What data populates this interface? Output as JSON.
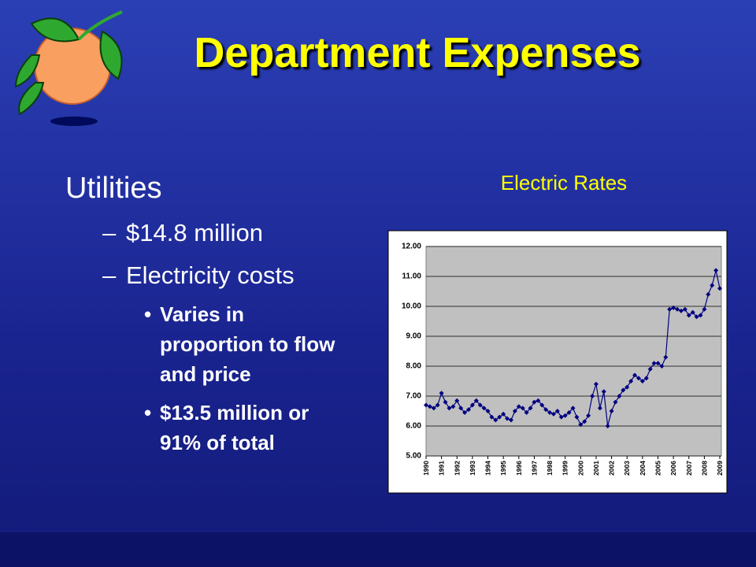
{
  "title": "Department Expenses",
  "heading": "Utilities",
  "dash": "–",
  "dot": "•",
  "items": [
    "$14.8 million",
    "Electricity costs"
  ],
  "subitems": [
    "Varies in proportion to flow and price",
    "$13.5 million or 91% of total"
  ],
  "chart_data": {
    "type": "line",
    "title": "Electric Rates",
    "x": [
      1990,
      1990.25,
      1990.5,
      1990.75,
      1991,
      1991.25,
      1991.5,
      1991.75,
      1992,
      1992.25,
      1992.5,
      1992.75,
      1993,
      1993.25,
      1993.5,
      1993.75,
      1994,
      1994.25,
      1994.5,
      1994.75,
      1995,
      1995.25,
      1995.5,
      1995.75,
      1996,
      1996.25,
      1996.5,
      1996.75,
      1997,
      1997.25,
      1997.5,
      1997.75,
      1998,
      1998.25,
      1998.5,
      1998.75,
      1999,
      1999.25,
      1999.5,
      1999.75,
      2000,
      2000.25,
      2000.5,
      2000.75,
      2001,
      2001.25,
      2001.5,
      2001.75,
      2002,
      2002.25,
      2002.5,
      2002.75,
      2003,
      2003.25,
      2003.5,
      2003.75,
      2004,
      2004.25,
      2004.5,
      2004.75,
      2005,
      2005.25,
      2005.5,
      2005.75,
      2006,
      2006.25,
      2006.5,
      2006.75,
      2007,
      2007.25,
      2007.5,
      2007.75,
      2008,
      2008.25,
      2008.5,
      2008.75,
      2009
    ],
    "series": [
      {
        "color": "#000080",
        "values": [
          6.7,
          6.65,
          6.6,
          6.7,
          7.1,
          6.8,
          6.6,
          6.65,
          6.85,
          6.6,
          6.45,
          6.55,
          6.7,
          6.85,
          6.7,
          6.6,
          6.5,
          6.3,
          6.2,
          6.3,
          6.4,
          6.25,
          6.2,
          6.5,
          6.65,
          6.6,
          6.45,
          6.6,
          6.8,
          6.85,
          6.7,
          6.55,
          6.45,
          6.4,
          6.5,
          6.3,
          6.35,
          6.45,
          6.6,
          6.3,
          6.05,
          6.15,
          6.35,
          7.0,
          7.4,
          6.6,
          7.15,
          6.0,
          6.5,
          6.8,
          7.0,
          7.2,
          7.3,
          7.5,
          7.7,
          7.6,
          7.5,
          7.6,
          7.9,
          8.1,
          8.1,
          8.0,
          8.3,
          9.9,
          9.95,
          9.9,
          9.85,
          9.9,
          9.7,
          9.8,
          9.65,
          9.7,
          9.9,
          10.4,
          10.7,
          11.2,
          10.6
        ]
      }
    ],
    "xlim": [
      1990,
      2009.1
    ],
    "xticks": [
      1990,
      1991,
      1992,
      1993,
      1994,
      1995,
      1996,
      1997,
      1998,
      1999,
      2000,
      2001,
      2002,
      2003,
      2004,
      2005,
      2006,
      2007,
      2008,
      2009
    ],
    "ylim": [
      5,
      12
    ],
    "yticks": [
      {
        "value": 5,
        "label": "5.00"
      },
      {
        "value": 6,
        "label": "6.00"
      },
      {
        "value": 7,
        "label": "7.00"
      },
      {
        "value": 8,
        "label": "8.00"
      },
      {
        "value": 9,
        "label": "9.00"
      },
      {
        "value": 10,
        "label": "10.00"
      },
      {
        "value": 11,
        "label": "11.00"
      },
      {
        "value": 12,
        "label": "12.00"
      }
    ],
    "grid": true
  }
}
